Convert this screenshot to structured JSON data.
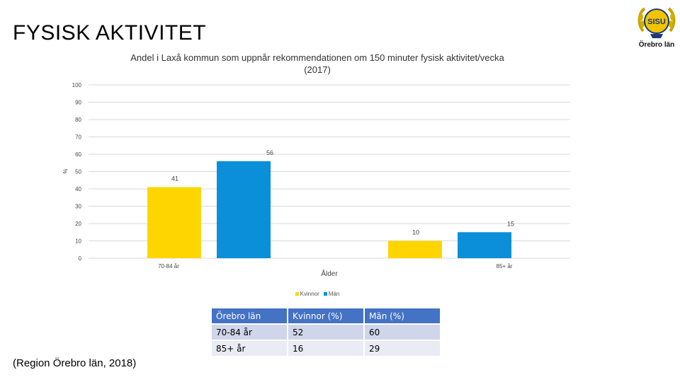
{
  "page": {
    "title": "FYSISK AKTIVITET",
    "source": "(Region Örebro län, 2018)"
  },
  "logo": {
    "icon": "sisu-wreath-logo-icon",
    "emblem_text": "SISU",
    "caption": "Örebro län"
  },
  "chart_data": {
    "type": "bar",
    "title": "Andel i Laxå kommun som uppnår rekommendationen om 150 minuter fysisk aktivitet/vecka",
    "subtitle": "(2017)",
    "xlabel": "Ålder",
    "ylabel": "%",
    "ylim": [
      0,
      100
    ],
    "yticks": [
      "100",
      "90",
      "80",
      "70",
      "60",
      "50",
      "40",
      "30",
      "20",
      "10",
      "0"
    ],
    "categories": [
      "70-84 år",
      "85+ år"
    ],
    "series": [
      {
        "name": "Kvinnor",
        "values": [
          41,
          10
        ],
        "color": "#ffd500"
      },
      {
        "name": "Män",
        "values": [
          56,
          15
        ],
        "color": "#0a8fd8"
      }
    ],
    "grid": true,
    "legend_position": "bottom"
  },
  "table": {
    "headers": [
      "Örebro län",
      "Kvinnor (%)",
      "Män (%)"
    ],
    "rows": [
      [
        "70-84 år",
        "52",
        "60"
      ],
      [
        "85+ år",
        "16",
        "29"
      ]
    ]
  }
}
